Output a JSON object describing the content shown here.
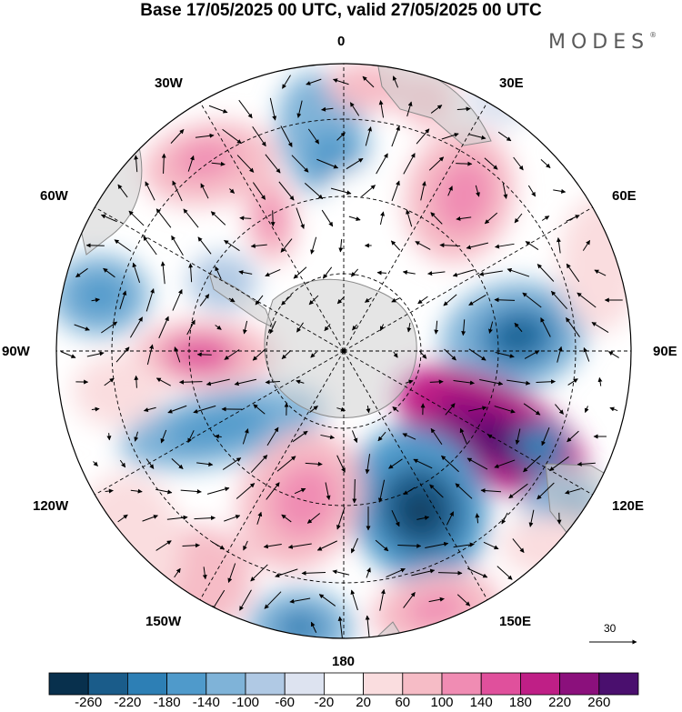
{
  "title": "Base 17/05/2025 00 UTC, valid 27/05/2025 00 UTC",
  "brand": "MODES",
  "brand_mark": "®",
  "map": {
    "projection": "south-polar-stereographic",
    "longitude_labels": {
      "top": "0",
      "top_right": "30E",
      "upper_right": "60E",
      "right": "90E",
      "lower_right": "120E",
      "bottom_right": "150E",
      "bottom": "180",
      "bottom_left": "150W",
      "lower_left": "120W",
      "left": "90W",
      "upper_left": "60W",
      "top_left": "30W"
    },
    "reference_vector": "30",
    "colors": {
      "land": "#cfcfcf",
      "coast": "#8a8a8a",
      "grid": "#000000",
      "vectors": "#000000"
    }
  },
  "colorbar": {
    "ticks": [
      "-260",
      "-220",
      "-180",
      "-140",
      "-100",
      "-60",
      "-20",
      "20",
      "60",
      "100",
      "140",
      "180",
      "220",
      "260"
    ],
    "colors": [
      "#08304d",
      "#1a5c8a",
      "#2d7fb5",
      "#4f9acb",
      "#7fb3d8",
      "#b0c9e4",
      "#dde3f0",
      "#ffffff",
      "#fadddf",
      "#f6bcc6",
      "#f08cb3",
      "#e0509c",
      "#bf1f86",
      "#8b107c",
      "#4a0f6e"
    ]
  }
}
